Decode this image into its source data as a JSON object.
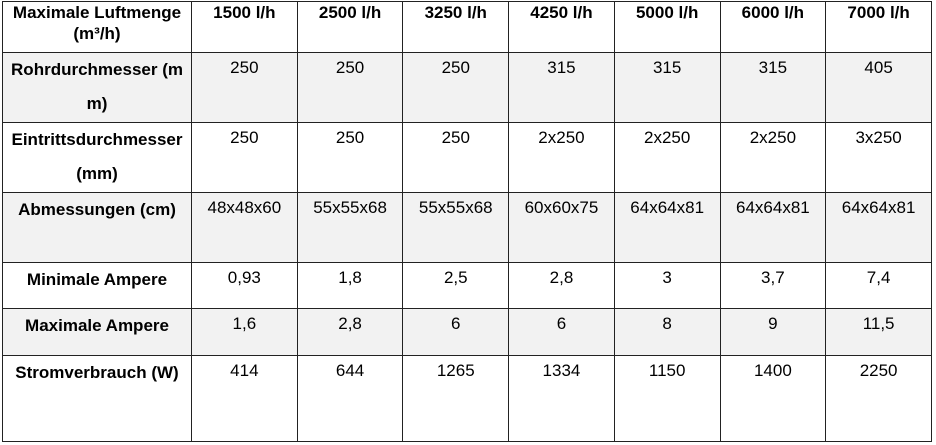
{
  "table": {
    "header": [
      "Maximale Luftmenge (m³/h)",
      "1500 l/h",
      "2500 l/h",
      "3250 l/h",
      "4250 l/h",
      "5000 l/h",
      "6000 l/h",
      "7000 l/h"
    ],
    "rows": [
      [
        "Rohrdurchmesser (mm)",
        "250",
        "250",
        "250",
        "315",
        "315",
        "315",
        "405"
      ],
      [
        "Eintrittsdurchmesser (mm)",
        "250",
        "250",
        "250",
        "2x250",
        "2x250",
        "2x250",
        "3x250"
      ],
      [
        "Abmessungen (cm)",
        "48x48x60",
        "55x55x68",
        "55x55x68",
        "60x60x75",
        "64x64x81",
        "64x64x81",
        "64x64x81"
      ],
      [
        "Minimale Ampere",
        "0,93",
        "1,8",
        "2,5",
        "2,8",
        "3",
        "3,7",
        "7,4"
      ],
      [
        "Maximale Ampere",
        "1,6",
        "2,8",
        "6",
        "6",
        "8",
        "9",
        "11,5"
      ],
      [
        "Stromverbrauch (W)",
        "414",
        "644",
        "1265",
        "1334",
        "1150",
        "1400",
        "2250"
      ]
    ]
  }
}
